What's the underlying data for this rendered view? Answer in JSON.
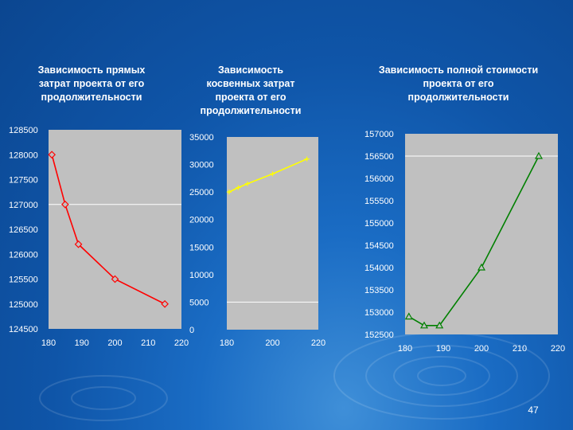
{
  "page": {
    "number": "47"
  },
  "colors": {
    "plot_bg": "#c0c0c0",
    "grid": "#ffffff",
    "series1": "#ff0000",
    "series2": "#ffff00",
    "series3": "#008000"
  },
  "chart_data": [
    {
      "type": "line",
      "title": "Зависимость прямых\nзатрат проекта от его\nпродолжительности",
      "xlim": [
        180,
        220
      ],
      "ylim": [
        124500,
        128500
      ],
      "x_ticks": [
        "180",
        "190",
        "200",
        "210",
        "220"
      ],
      "y_ticks": [
        "128500",
        "128000",
        "127500",
        "127000",
        "126500",
        "126000",
        "125500",
        "125000",
        "124500"
      ],
      "grid_y": [
        127000
      ],
      "marker": "diamond",
      "color": "#ff0000",
      "series": [
        {
          "x": [
            181,
            185,
            189,
            200,
            215
          ],
          "y": [
            128000,
            127000,
            126200,
            125500,
            125000
          ]
        }
      ]
    },
    {
      "type": "line",
      "title": "Зависимость\nкосвенных затрат\nпроекта от его\nпродолжительности",
      "xlim": [
        180,
        220
      ],
      "ylim": [
        0,
        35000
      ],
      "x_ticks": [
        "180",
        "200",
        "220"
      ],
      "y_ticks": [
        "35000",
        "30000",
        "25000",
        "20000",
        "15000",
        "10000",
        "5000",
        "0"
      ],
      "grid_y": [
        5000
      ],
      "marker": "cross",
      "color": "#ffff00",
      "series": [
        {
          "x": [
            181,
            185,
            189,
            200,
            215
          ],
          "y": [
            25000,
            25800,
            26500,
            28300,
            31000
          ]
        }
      ]
    },
    {
      "type": "line",
      "title": "Зависимость полной стоимости\nпроекта от его\nпродолжительности",
      "xlim": [
        180,
        220
      ],
      "ylim": [
        152500,
        157000
      ],
      "x_ticks": [
        "180",
        "190",
        "200",
        "210",
        "220"
      ],
      "y_ticks": [
        "157000",
        "156500",
        "156000",
        "155500",
        "155000",
        "154500",
        "154000",
        "153500",
        "153000",
        "152500"
      ],
      "grid_y": [
        156500
      ],
      "marker": "triangle",
      "color": "#008000",
      "series": [
        {
          "x": [
            181,
            185,
            189,
            200,
            215
          ],
          "y": [
            152900,
            152700,
            152700,
            154000,
            156500
          ]
        }
      ]
    }
  ]
}
